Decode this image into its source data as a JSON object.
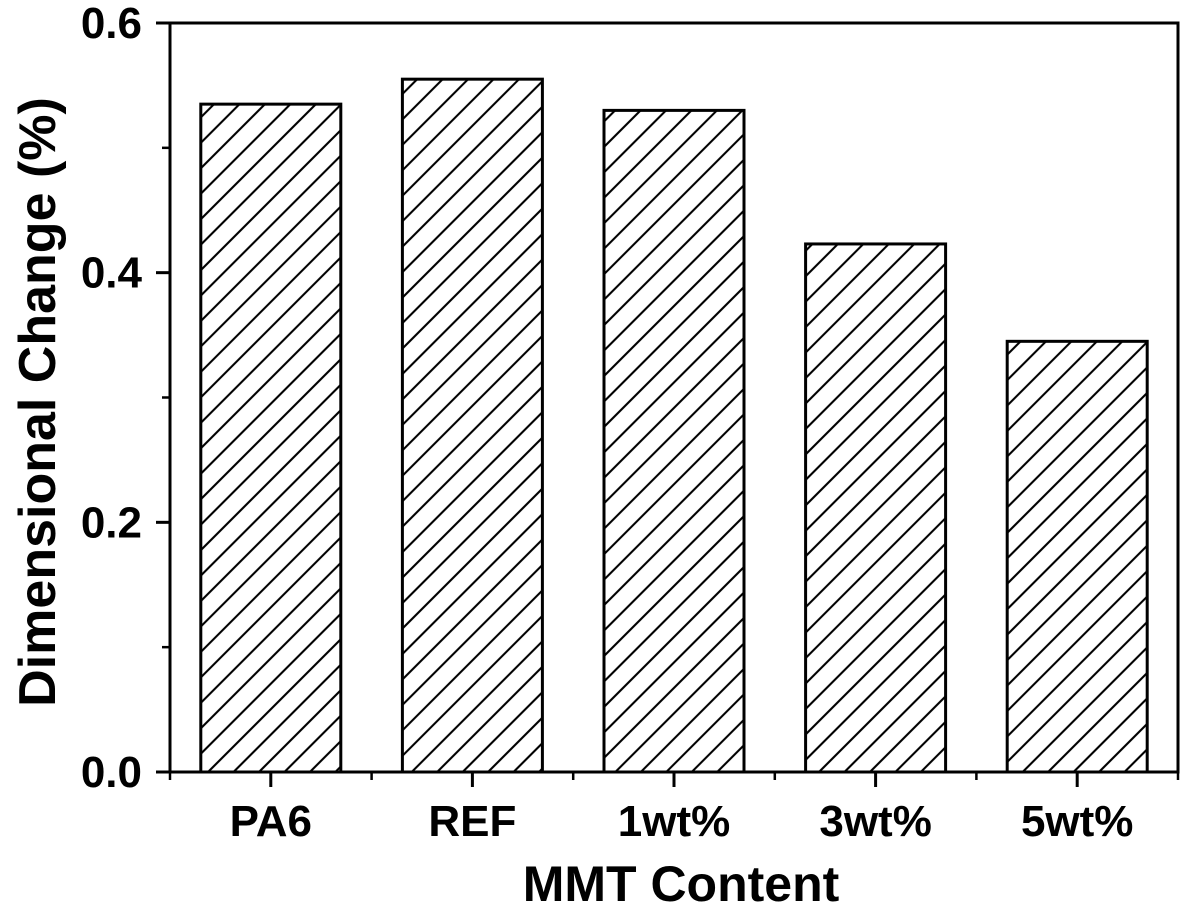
{
  "figure": {
    "background_color": "#ffffff",
    "text_color": "#000000",
    "axis_color": "#000000"
  },
  "chart_data": {
    "type": "bar",
    "title": "",
    "categories": [
      "PA6",
      "REF",
      "1wt%",
      "3wt%",
      "5wt%"
    ],
    "values": [
      0.535,
      0.555,
      0.53,
      0.423,
      0.345
    ],
    "xlabel": "MMT Content",
    "ylabel": "Dimensional Change (%)",
    "ylim": [
      0.0,
      0.6
    ],
    "ytick_values": [
      0.0,
      0.2,
      0.4,
      0.6
    ],
    "ytick_labels": [
      "0.0",
      "0.2",
      "0.4",
      "0.6"
    ],
    "yminor_values": [
      0.1,
      0.3,
      0.5
    ],
    "grid": false,
    "legend": "none",
    "frame": "full-box",
    "bar_style": {
      "fill": "#ffffff",
      "hatch": "diagonal-forward-slash",
      "hatch_color": "#000000",
      "stroke": "#000000"
    }
  }
}
